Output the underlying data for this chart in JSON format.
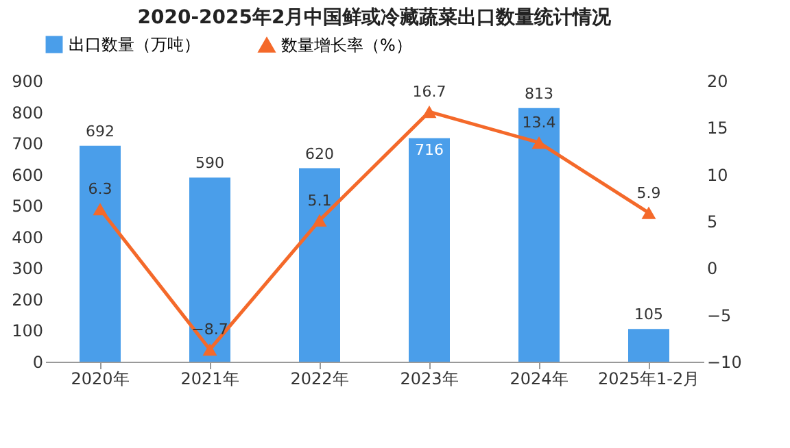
{
  "chart_data": {
    "type": "bar",
    "title": "2020-2025年2月中国鲜或冷藏蔬菜出口数量统计情况",
    "categories": [
      "2020年",
      "2021年",
      "2022年",
      "2023年",
      "2024年",
      "2025年1-2月"
    ],
    "series": [
      {
        "name": "出口数量（万吨）",
        "color": "#4a9eea",
        "values": [
          692,
          590,
          620,
          716,
          813,
          105
        ]
      },
      {
        "name": "数量增长率（%）",
        "type": "line",
        "axis": "y2",
        "color": "#f4692a",
        "values": [
          6.3,
          -8.7,
          5.1,
          16.7,
          13.4,
          5.9
        ]
      }
    ],
    "ylim": [
      0,
      900
    ],
    "yticks": [
      0,
      100,
      200,
      300,
      400,
      500,
      600,
      700,
      800,
      900
    ],
    "y2lim": [
      -10,
      20
    ],
    "y2ticks": [
      -10,
      -5,
      0,
      5,
      10,
      15,
      20
    ],
    "data_labels": true,
    "legend": "top",
    "grid": false,
    "marker": "triangle",
    "line_style": "solid"
  }
}
